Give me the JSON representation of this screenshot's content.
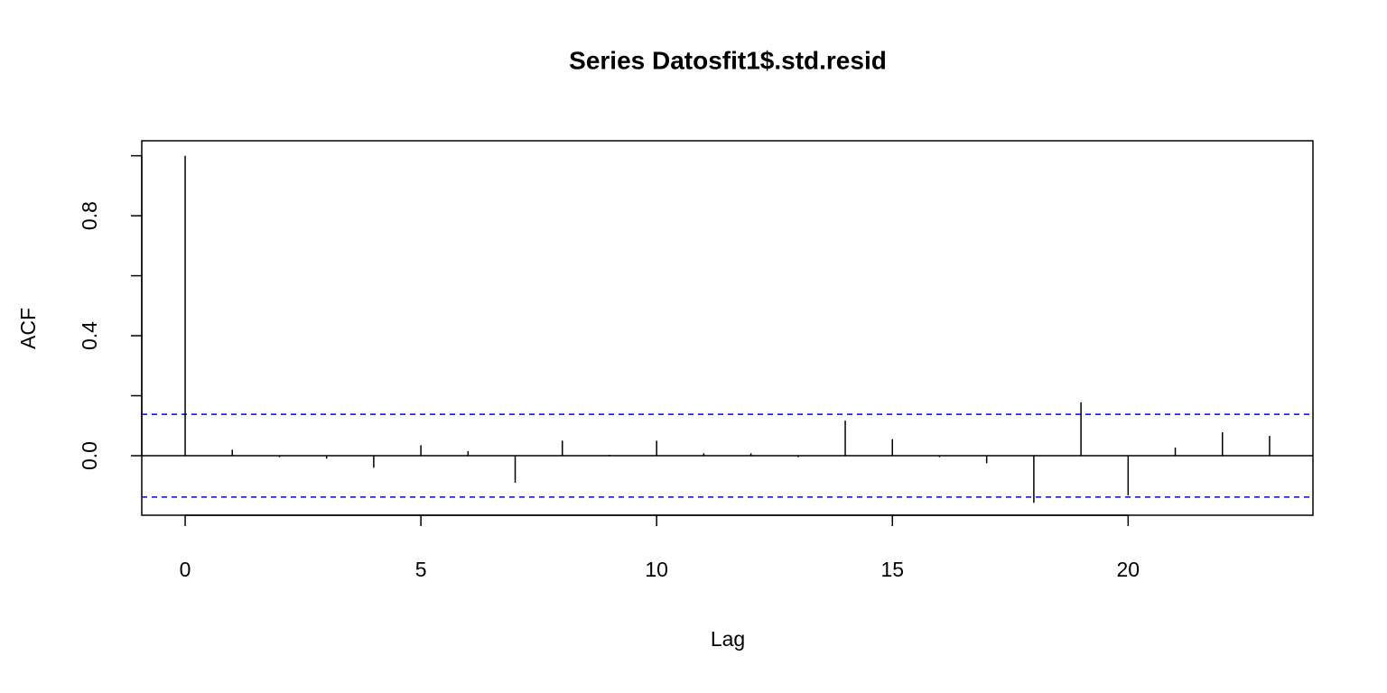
{
  "chart_data": {
    "type": "acf",
    "title": "Series  Datosfit1$.std.resid",
    "x_label": "Lag",
    "y_label": "ACF",
    "x": [
      0,
      1,
      2,
      3,
      4,
      5,
      6,
      7,
      8,
      9,
      10,
      11,
      12,
      13,
      14,
      15,
      16,
      17,
      18,
      19,
      20,
      21,
      22,
      23
    ],
    "values": [
      1.0,
      0.02,
      -0.005,
      -0.01,
      -0.04,
      0.035,
      0.015,
      -0.09,
      0.05,
      0.003,
      0.05,
      0.008,
      0.008,
      -0.005,
      0.117,
      0.055,
      -0.005,
      -0.025,
      -0.157,
      0.178,
      -0.132,
      0.027,
      0.078,
      0.066
    ],
    "color": "#000000",
    "xlim": [
      -0.92,
      23.92
    ],
    "xticks": [
      0,
      5,
      10,
      15,
      20
    ],
    "ylim": [
      -0.1985,
      1.05
    ],
    "yticks": [
      {
        "value": 0,
        "label": "0.0"
      },
      {
        "value": 0.4,
        "label": "0.4"
      },
      {
        "value": 0.8,
        "label": "0.8"
      }
    ],
    "yticks_unlabeled": [
      0.2,
      0.6,
      1.0
    ],
    "zero_line": true,
    "ci": 0.138,
    "ci_color": "#0000ff"
  }
}
